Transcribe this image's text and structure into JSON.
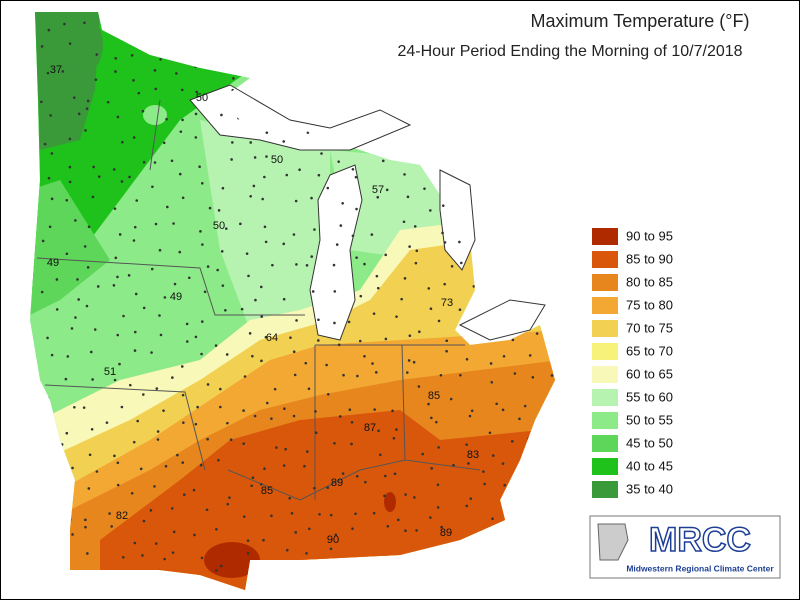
{
  "header": {
    "title": "Maximum Temperature (°F)",
    "subtitle": "24-Hour Period Ending the Morning of 10/7/2018"
  },
  "legend": [
    {
      "label": "90 to 95",
      "color": "#b02a00"
    },
    {
      "label": "85 to 90",
      "color": "#d9570a"
    },
    {
      "label": "80 to 85",
      "color": "#e8861e"
    },
    {
      "label": "75 to 80",
      "color": "#f2a832"
    },
    {
      "label": "70 to 75",
      "color": "#f2d152"
    },
    {
      "label": "65 to 70",
      "color": "#f6f27a"
    },
    {
      "label": "60 to 65",
      "color": "#f8f8b8"
    },
    {
      "label": "55 to 60",
      "color": "#b6f3b0"
    },
    {
      "label": "50 to 55",
      "color": "#8ceb88"
    },
    {
      "label": "45 to 50",
      "color": "#5ed65a"
    },
    {
      "label": "40 to 45",
      "color": "#1ec21a"
    },
    {
      "label": "35 to 40",
      "color": "#3a9a3a"
    }
  ],
  "stations": [
    "37",
    "50",
    "50",
    "50",
    "57",
    "49",
    "49",
    "64",
    "73",
    "51",
    "85",
    "87",
    "83",
    "85",
    "89",
    "82",
    "90",
    "89"
  ],
  "logo": {
    "name": "MRCC",
    "full_name": "Midwestern Regional Climate Center"
  }
}
